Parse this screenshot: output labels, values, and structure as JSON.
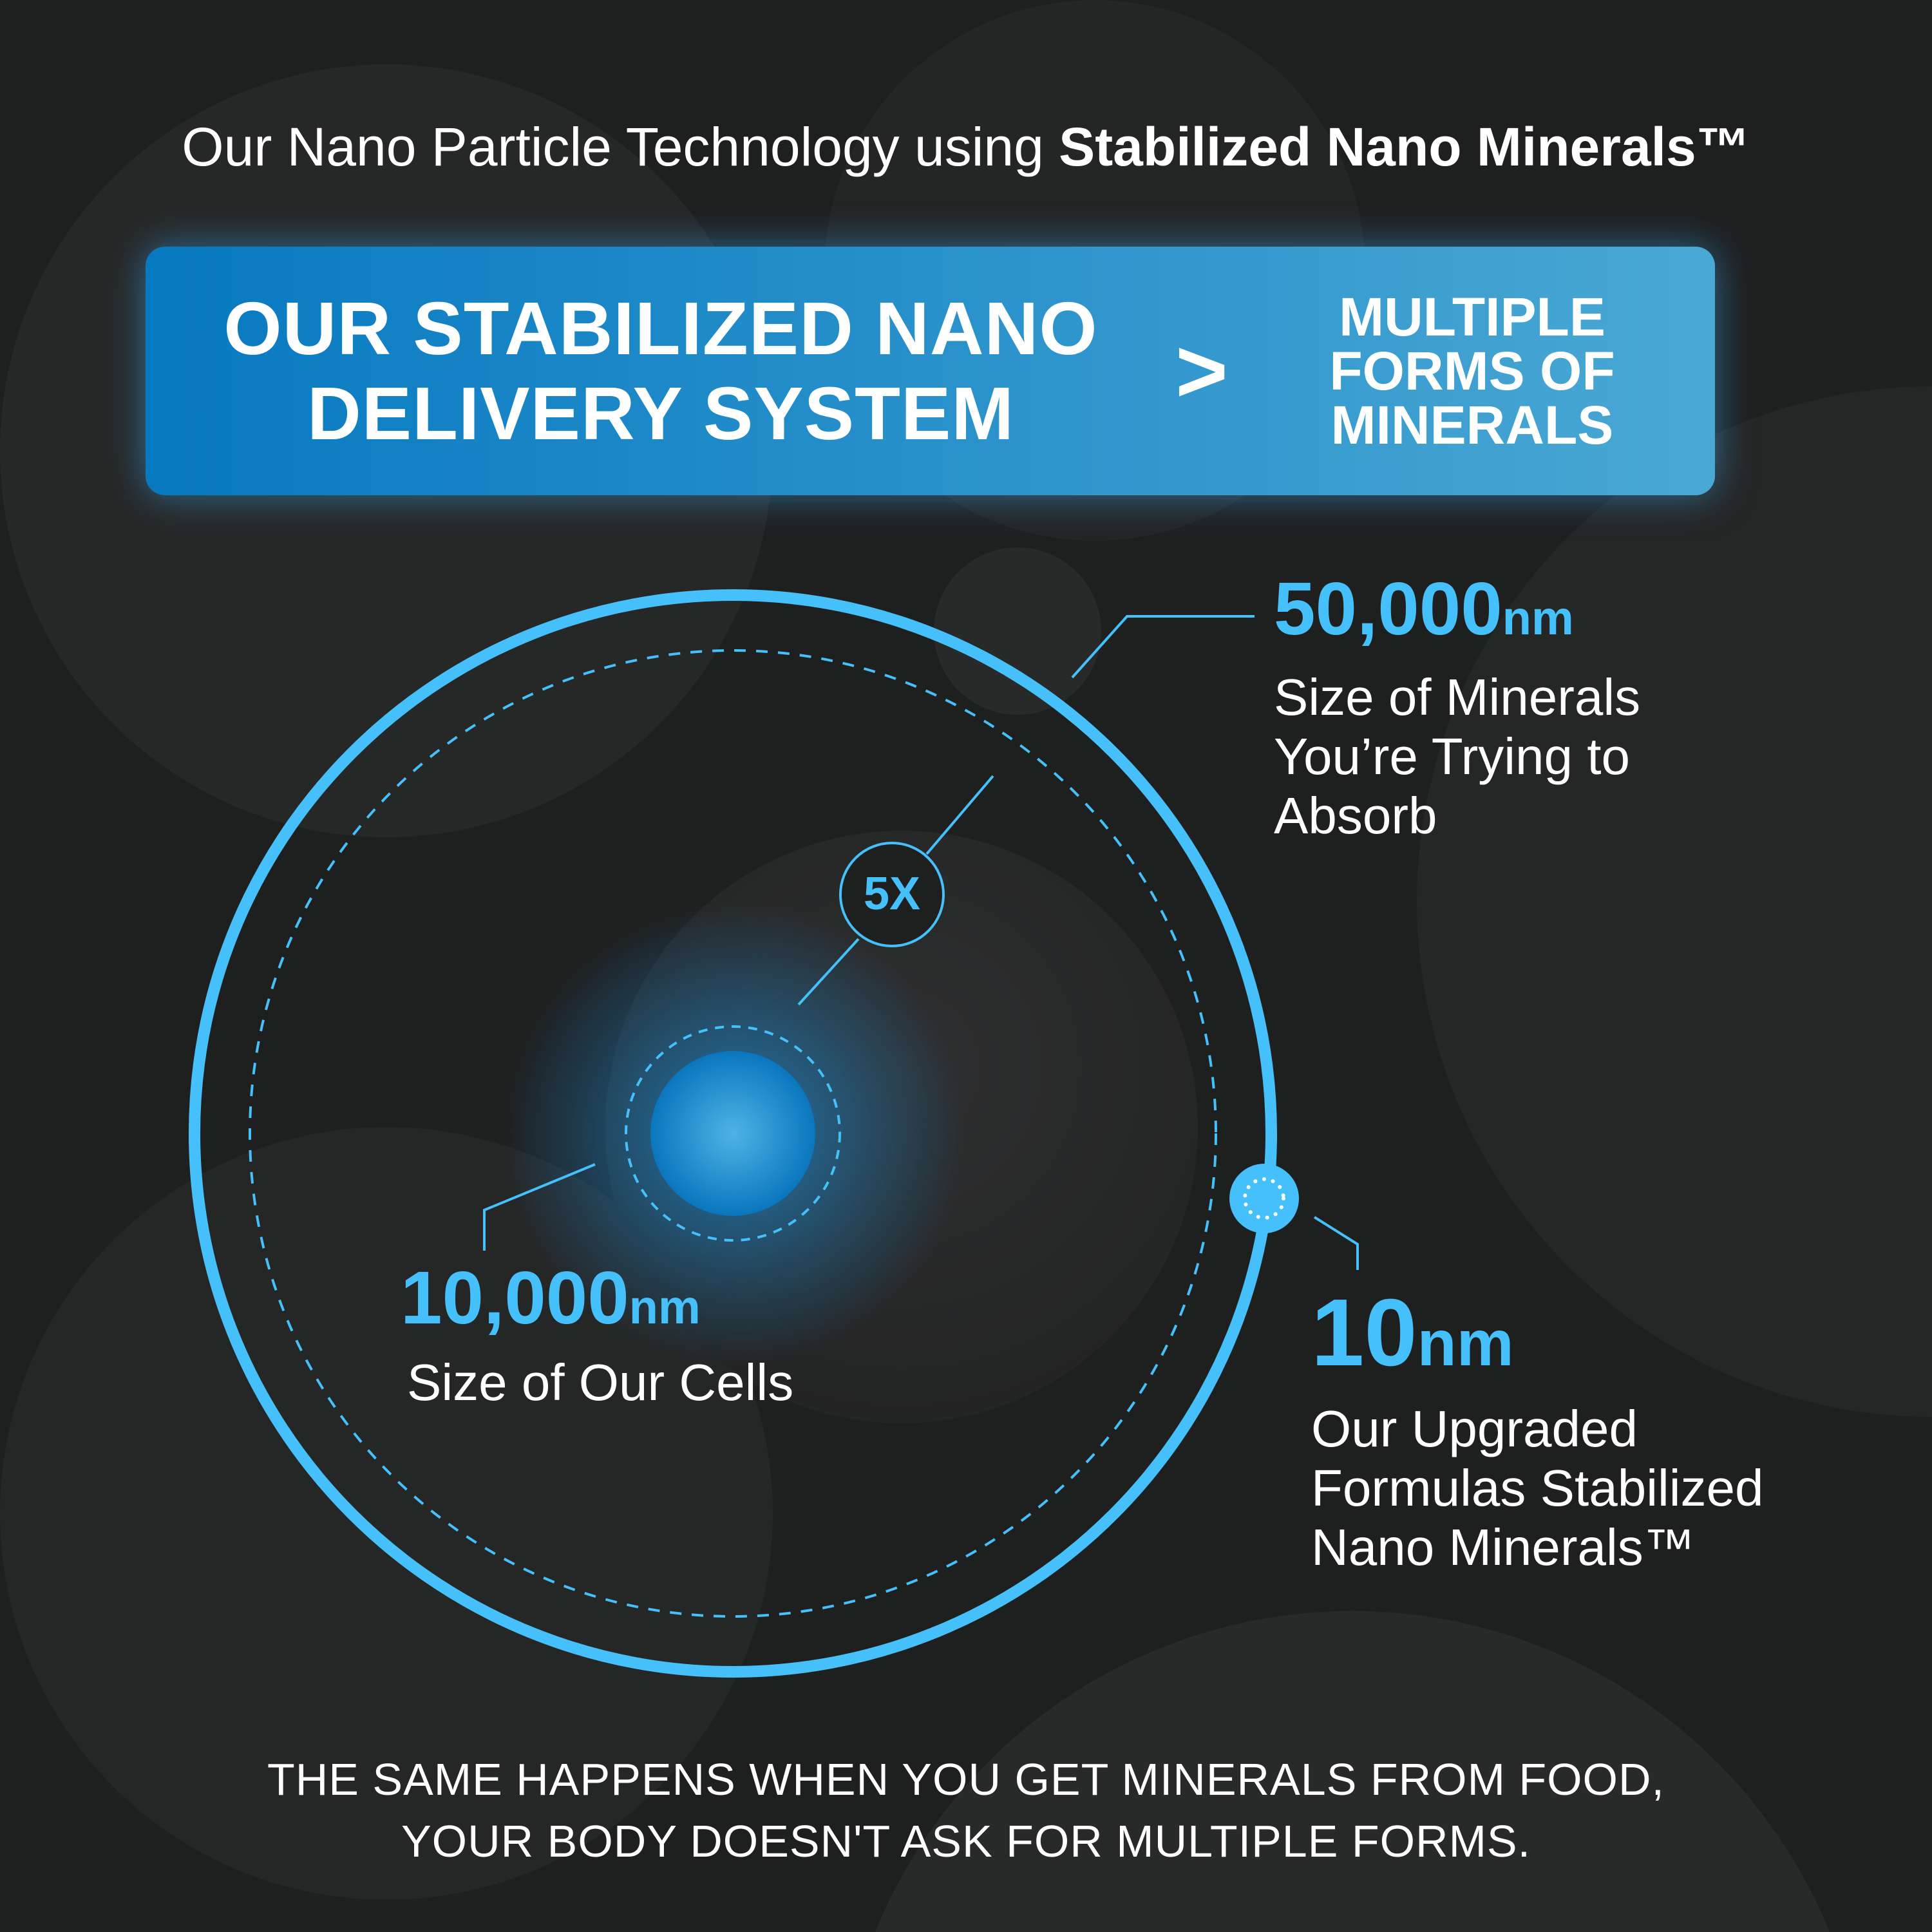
{
  "header": {
    "prefix": "Our Nano Particle Technology using ",
    "bold": "Stabilized Nano Minerals™"
  },
  "banner": {
    "left_line1": "OUR STABILIZED NANO",
    "left_line2": "DELIVERY SYSTEM",
    "comparator": ">",
    "right_line1": "MULTIPLE",
    "right_line2": "FORMS OF",
    "right_line3": "MINERALS"
  },
  "callouts": {
    "minerals": {
      "value": "50,000",
      "unit": "nm",
      "lines": [
        "Size of Minerals",
        "You’re Trying to",
        "Absorb"
      ]
    },
    "cells": {
      "value": "10,000",
      "unit": "nm",
      "lines": [
        "Size of Our Cells"
      ]
    },
    "nano": {
      "value": "10",
      "unit": "nm",
      "lines": [
        "Our Upgraded",
        "Formulas Stabilized",
        "Nano Minerals™"
      ]
    },
    "ratio": "5X"
  },
  "footer": {
    "line1": "THE SAME HAPPENS WHEN YOU GET MINERALS FROM FOOD,",
    "line2": "YOUR BODY DOESN'T ASK FOR MULTIPLE FORMS."
  },
  "colors": {
    "accent": "#45c0fa",
    "banner_start": "#0779c1",
    "banner_end": "#4aa8d4",
    "background": "#1e1f1f"
  }
}
